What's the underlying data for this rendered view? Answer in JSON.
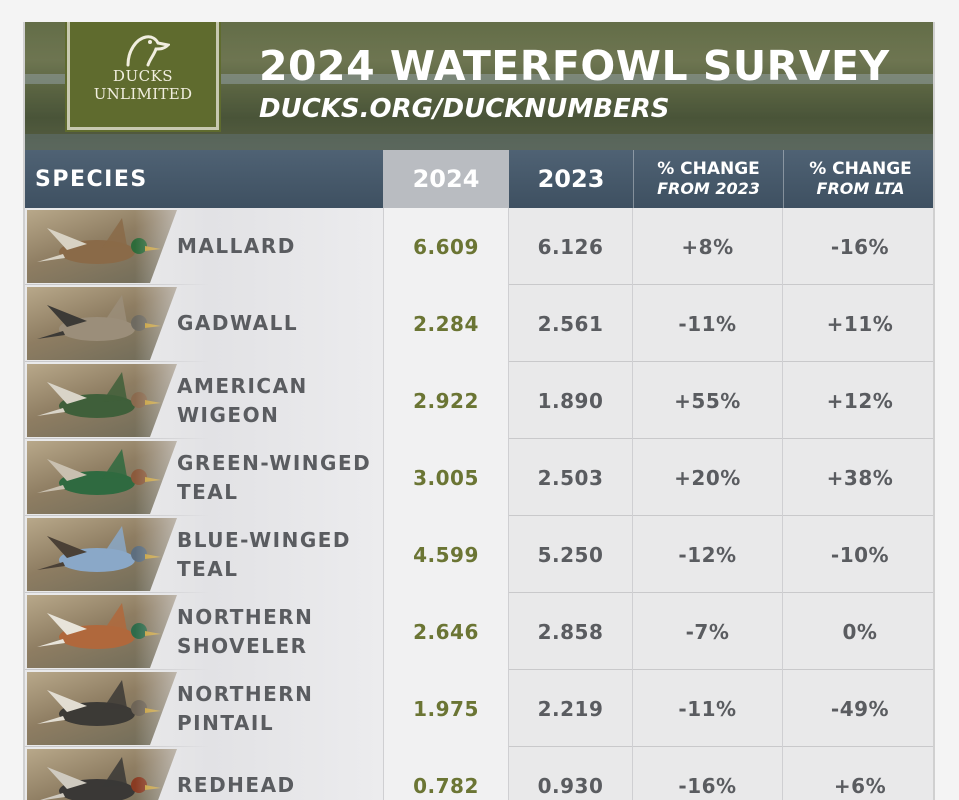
{
  "header": {
    "logo_line1": "DUCKS",
    "logo_line2": "UNLIMITED",
    "title": "2024 WATERFOWL SURVEY",
    "url": "DUCKS.ORG/DUCKNUMBERS"
  },
  "table": {
    "columns": {
      "species": "SPECIES",
      "y2024": "2024",
      "y2023": "2023",
      "change_2023_top": "% CHANGE",
      "change_2023_bottom": "FROM 2023",
      "change_lta_top": "% CHANGE",
      "change_lta_bottom": "FROM LTA"
    },
    "rows": [
      {
        "species": "MALLARD",
        "y2024": "6.609",
        "y2023": "6.126",
        "change_2023": "+8%",
        "change_lta": "-16%"
      },
      {
        "species": "GADWALL",
        "y2024": "2.284",
        "y2023": "2.561",
        "change_2023": "-11%",
        "change_lta": "+11%"
      },
      {
        "species": "AMERICAN\nWIGEON",
        "y2024": "2.922",
        "y2023": "1.890",
        "change_2023": "+55%",
        "change_lta": "+12%"
      },
      {
        "species": "GREEN-WINGED\nTEAL",
        "y2024": "3.005",
        "y2023": "2.503",
        "change_2023": "+20%",
        "change_lta": "+38%"
      },
      {
        "species": "BLUE-WINGED\nTEAL",
        "y2024": "4.599",
        "y2023": "5.250",
        "change_2023": "-12%",
        "change_lta": "-10%"
      },
      {
        "species": "NORTHERN\nSHOVELER",
        "y2024": "2.646",
        "y2023": "2.858",
        "change_2023": "-7%",
        "change_lta": "0%"
      },
      {
        "species": "NORTHERN\nPINTAIL",
        "y2024": "1.975",
        "y2023": "2.219",
        "change_2023": "-11%",
        "change_lta": "-49%"
      },
      {
        "species": "REDHEAD",
        "y2024": "0.782",
        "y2023": "0.930",
        "change_2023": "-16%",
        "change_lta": "+6%"
      }
    ]
  },
  "colors": {
    "brand_green": "#5f6b2e",
    "header_blue": "#46596b",
    "value_2024": "#6b7534",
    "text_gray": "#5a5c60"
  }
}
